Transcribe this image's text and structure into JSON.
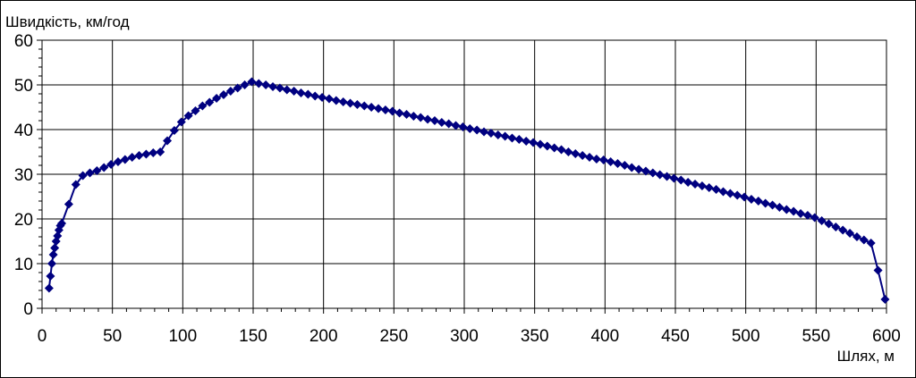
{
  "chart_data": {
    "type": "line",
    "title": "Швидкість, км/год",
    "x_label": "Шлях, м",
    "x": [
      5,
      6,
      7,
      8,
      9,
      10,
      11,
      12,
      13,
      14,
      19,
      24,
      29,
      34,
      39,
      44,
      49,
      54,
      59,
      64,
      69,
      74,
      79,
      84,
      89,
      94,
      99,
      104,
      109,
      114,
      119,
      124,
      129,
      134,
      139,
      144,
      149,
      154,
      159,
      164,
      169,
      174,
      179,
      184,
      189,
      194,
      199,
      204,
      209,
      214,
      219,
      224,
      229,
      234,
      239,
      244,
      249,
      254,
      259,
      264,
      269,
      274,
      279,
      284,
      289,
      294,
      299,
      304,
      309,
      314,
      319,
      324,
      329,
      334,
      339,
      344,
      349,
      354,
      359,
      364,
      369,
      374,
      379,
      384,
      389,
      394,
      399,
      404,
      409,
      414,
      419,
      424,
      429,
      434,
      439,
      444,
      449,
      454,
      459,
      464,
      469,
      474,
      479,
      484,
      489,
      494,
      499,
      504,
      509,
      514,
      519,
      524,
      529,
      534,
      539,
      544,
      549,
      554,
      559,
      564,
      569,
      574,
      579,
      584,
      589,
      594,
      599
    ],
    "series": [
      {
        "name": "Швидкість",
        "color": "#000080",
        "values": [
          4.5,
          7.2,
          10,
          12,
          13.5,
          15,
          16.2,
          17.5,
          18.5,
          19,
          23.3,
          27.7,
          29.7,
          30.3,
          30.8,
          31.5,
          32.2,
          32.8,
          33.3,
          33.8,
          34.2,
          34.5,
          34.8,
          35,
          37.5,
          39.8,
          41.7,
          43.1,
          44.2,
          45.3,
          46.1,
          47,
          47.8,
          48.6,
          49.3,
          50,
          50.7,
          50.3,
          50.0,
          49.6,
          49.3,
          48.9,
          48.6,
          48.2,
          47.9,
          47.5,
          47.2,
          46.9,
          46.5,
          46.2,
          45.9,
          45.6,
          45.3,
          45.0,
          44.7,
          44.4,
          44.1,
          43.7,
          43.4,
          43.0,
          42.7,
          42.3,
          42.0,
          41.6,
          41.3,
          40.9,
          40.6,
          40.2,
          39.9,
          39.5,
          39.2,
          38.8,
          38.5,
          38.1,
          37.8,
          37.4,
          37.1,
          36.7,
          36.3,
          35.9,
          35.5,
          35.0,
          34.6,
          34.2,
          33.8,
          33.4,
          33.2,
          32.8,
          32.4,
          32.0,
          31.5,
          31.1,
          30.7,
          30.3,
          29.9,
          29.5,
          29.1,
          28.7,
          28.2,
          27.8,
          27.4,
          27.0,
          26.6,
          26.1,
          25.7,
          25.3,
          24.9,
          24.4,
          24.0,
          23.5,
          23.1,
          22.6,
          22.1,
          21.7,
          21.2,
          20.8,
          20.3,
          19.6,
          18.9,
          18.2,
          17.5,
          16.8,
          16.0,
          15.3,
          14.6,
          8.5,
          2
        ]
      }
    ],
    "xlim": [
      0,
      600
    ],
    "xticks": [
      0,
      50,
      100,
      150,
      200,
      250,
      300,
      350,
      400,
      450,
      500,
      550,
      600
    ],
    "ylim": [
      0,
      60
    ],
    "yticks": [
      0,
      10,
      20,
      30,
      40,
      50,
      60
    ],
    "grid": true
  }
}
